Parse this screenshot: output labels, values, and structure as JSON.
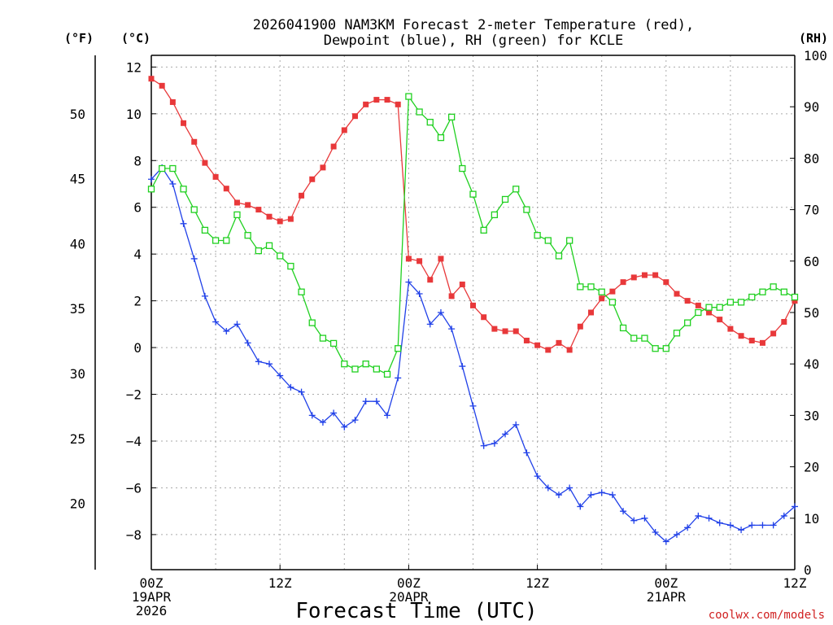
{
  "chart_data": {
    "type": "line",
    "title_lines": [
      "2026041900 NAM3KM Forecast 2-meter Temperature (red),",
      "Dewpoint (blue), RH (green) for KCLE"
    ],
    "xlabel": "Forecast Time (UTC)",
    "credit": "coolwx.com/models",
    "unit_labels": {
      "fahrenheit": "(°F)",
      "celsius": "(°C)",
      "rh": "(RH)"
    },
    "x_range_hours": [
      0,
      60
    ],
    "x_ticks": [
      {
        "hour": 0,
        "lines": [
          "00Z",
          "19APR",
          "2026"
        ]
      },
      {
        "hour": 12,
        "lines": [
          "12Z"
        ]
      },
      {
        "hour": 24,
        "lines": [
          "00Z",
          "20APR"
        ]
      },
      {
        "hour": 36,
        "lines": [
          "12Z"
        ]
      },
      {
        "hour": 48,
        "lines": [
          "00Z",
          "21APR"
        ]
      },
      {
        "hour": 60,
        "lines": [
          "12Z"
        ]
      }
    ],
    "y_celsius_range": [
      -9.5,
      12.5
    ],
    "y_celsius_ticks": [
      "12",
      "10",
      "8",
      "6",
      "4",
      "2",
      "0",
      "−2",
      "−4",
      "−6",
      "−8"
    ],
    "y_fahrenheit_ticks": [
      "50",
      "45",
      "40",
      "35",
      "30",
      "25",
      "20"
    ],
    "y_rh_range": [
      0,
      100
    ],
    "y_rh_ticks": [
      "100",
      "90",
      "80",
      "70",
      "60",
      "50",
      "40",
      "30",
      "20",
      "10",
      "0"
    ],
    "grid": true,
    "series": [
      {
        "name": "2-meter Temperature",
        "color": "#e8383a",
        "marker": "square-filled",
        "values": [
          11.5,
          11.2,
          10.5,
          9.6,
          8.8,
          7.9,
          7.3,
          6.8,
          6.2,
          6.1,
          5.9,
          5.6,
          5.4,
          5.5,
          6.5,
          7.2,
          7.7,
          8.6,
          9.3,
          9.9,
          10.4,
          10.6,
          10.6,
          10.4,
          3.8,
          3.7,
          2.9,
          3.8,
          2.2,
          2.7,
          1.8,
          1.3,
          0.8,
          0.7,
          0.7,
          0.3,
          0.1,
          -0.1,
          0.2,
          -0.1,
          0.9,
          1.5,
          2.1,
          2.4,
          2.8,
          3.0,
          3.1,
          3.1,
          2.8,
          2.3,
          2.0,
          1.8,
          1.5,
          1.2,
          0.8,
          0.5,
          0.3,
          0.2,
          0.6,
          1.1,
          2.0
        ]
      },
      {
        "name": "Dewpoint",
        "color": "#2040e8",
        "marker": "plus",
        "values": [
          7.2,
          7.7,
          7.0,
          5.3,
          3.8,
          2.2,
          1.1,
          0.7,
          1.0,
          0.2,
          -0.6,
          -0.7,
          -1.2,
          -1.7,
          -1.9,
          -2.9,
          -3.2,
          -2.8,
          -3.4,
          -3.1,
          -2.3,
          -2.3,
          -2.9,
          -1.3,
          2.8,
          2.3,
          1.0,
          1.5,
          0.8,
          -0.8,
          -2.5,
          -4.2,
          -4.1,
          -3.7,
          -3.3,
          -4.5,
          -5.5,
          -6.0,
          -6.3,
          -6.0,
          -6.8,
          -6.3,
          -6.2,
          -6.3,
          -7.0,
          -7.4,
          -7.3,
          -7.9,
          -8.3,
          -8.0,
          -7.7,
          -7.2,
          -7.3,
          -7.5,
          -7.6,
          -7.8,
          -7.6,
          -7.6,
          -7.6,
          -7.2,
          -6.8
        ]
      },
      {
        "name": "Relative Humidity",
        "color": "#20d020",
        "marker": "square-open",
        "values": [
          74,
          78,
          78,
          74,
          70,
          66,
          64,
          64,
          69,
          65,
          62,
          63,
          61,
          59,
          54,
          48,
          45,
          44,
          40,
          39,
          40,
          39,
          38,
          43,
          92,
          89,
          87,
          84,
          88,
          78,
          73,
          66,
          69,
          72,
          74,
          70,
          65,
          64,
          61,
          64,
          55,
          55,
          54,
          52,
          47,
          45,
          45,
          43,
          43,
          46,
          48,
          50,
          51,
          51,
          52,
          52,
          53,
          54,
          55,
          54,
          53
        ]
      }
    ]
  }
}
